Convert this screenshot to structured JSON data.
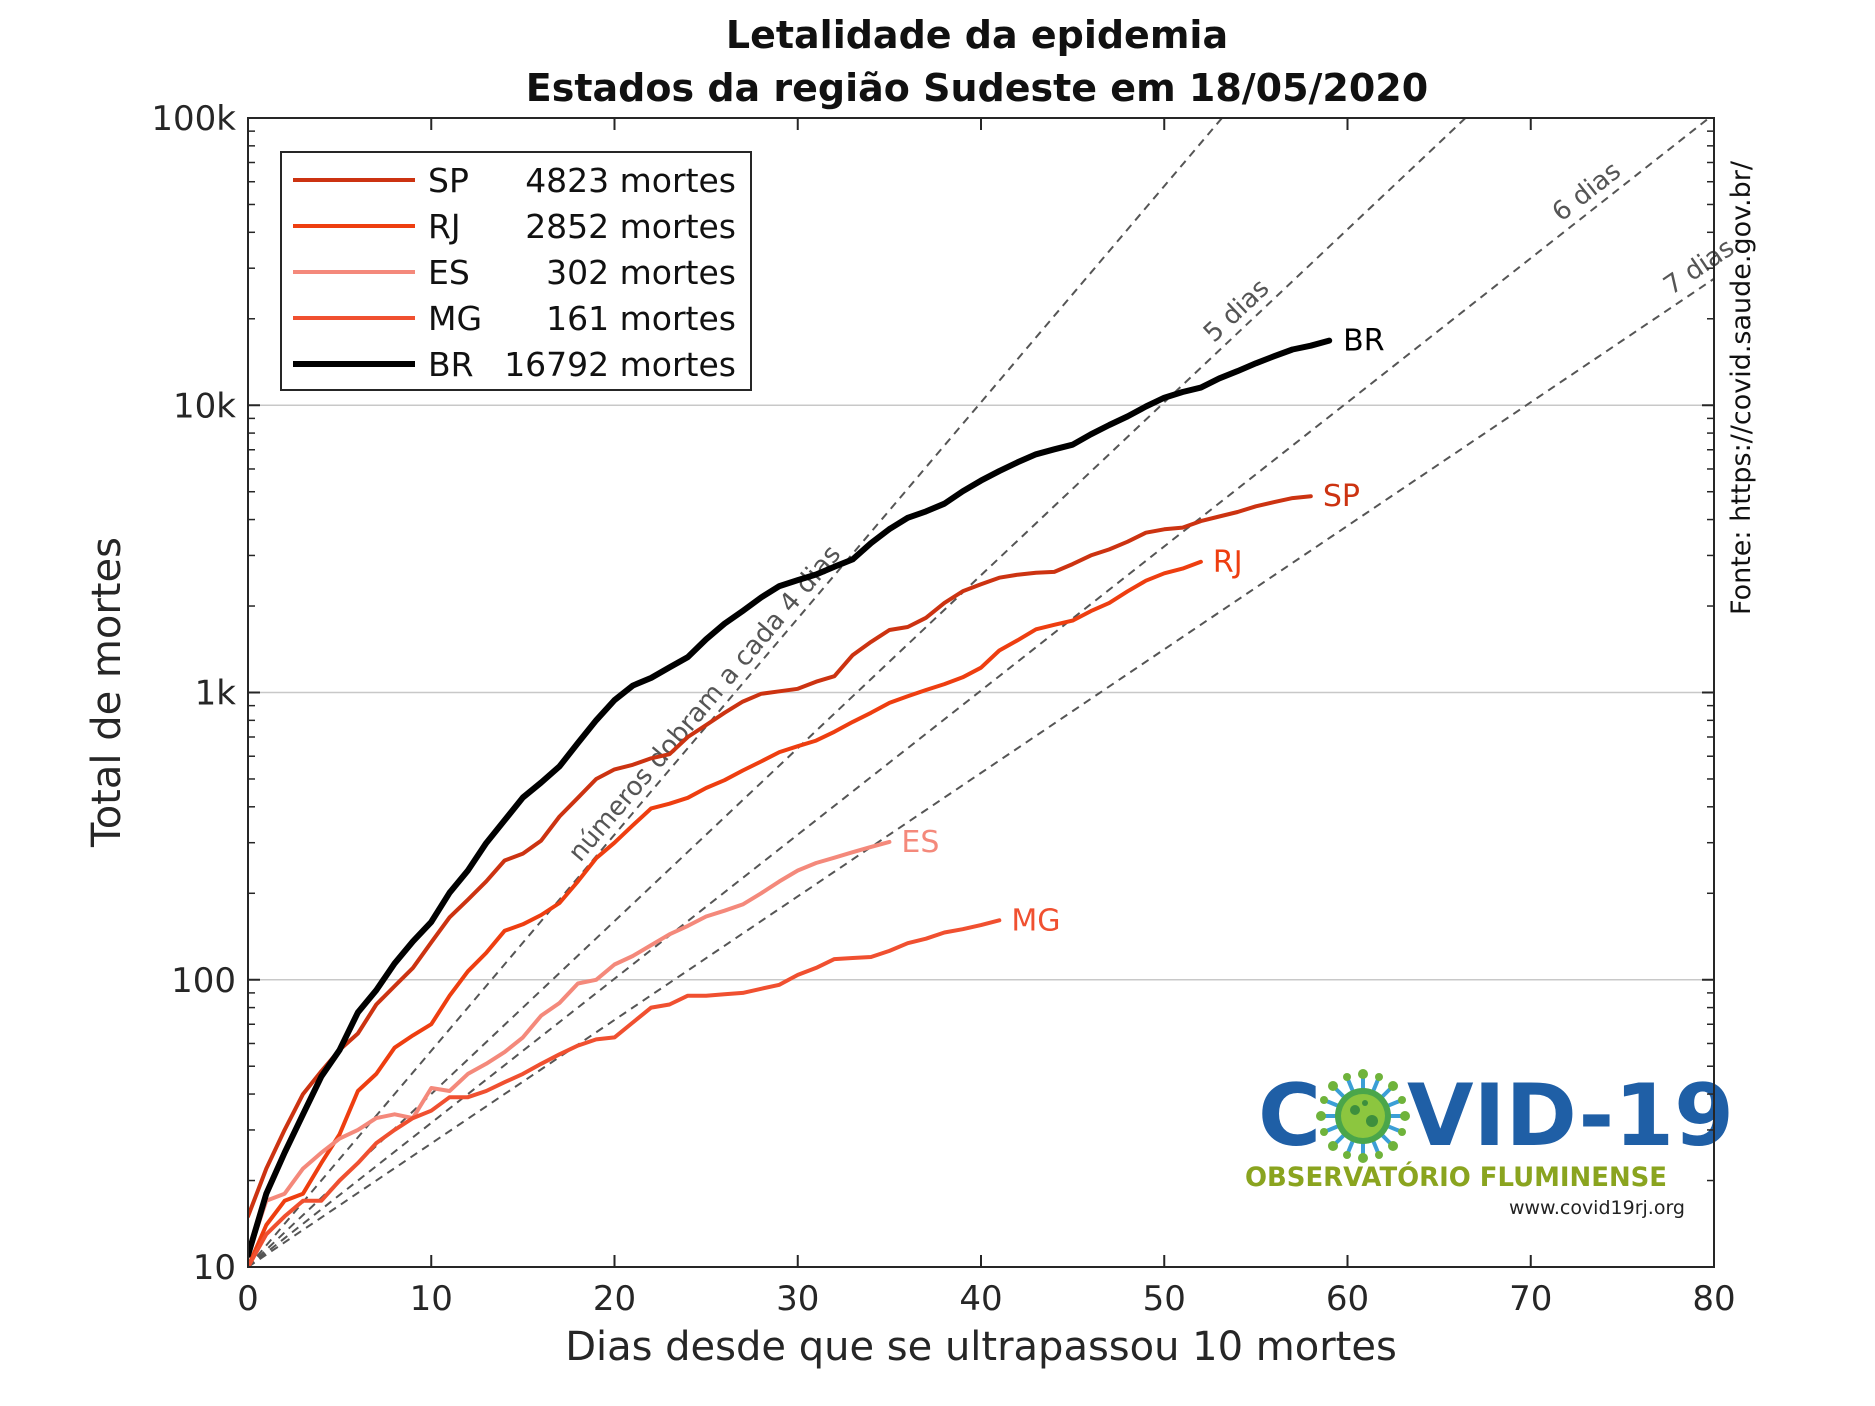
{
  "chart_data": {
    "type": "line",
    "title": "Letalidade da epidemia",
    "subtitle": "Estados da região Sudeste em 18/05/2020",
    "xlabel": "Dias desde que se ultrapassou 10 mortes",
    "ylabel": "Total de mortes",
    "xlim": [
      0,
      80
    ],
    "ylim": [
      10,
      100000
    ],
    "yscale": "log",
    "x_ticks": [
      "0",
      "10",
      "20",
      "30",
      "40",
      "50",
      "60",
      "70",
      "80"
    ],
    "y_ticks": [
      "10",
      "100",
      "1k",
      "10k",
      "100k"
    ],
    "grid": "horizontal at decades",
    "legend_position": "top-left",
    "source": "Fonte: https://covid.saude.gov.br/",
    "logo": {
      "name": "COVID-19",
      "subtitle": "OBSERVATÓRIO FLUMINENSE",
      "url": "www.covid19rj.org"
    },
    "reference_lines": [
      {
        "label": "números dobram a cada 4 dias",
        "doubling_days": 4
      },
      {
        "label": "5 dias",
        "doubling_days": 5
      },
      {
        "label": "6 dias",
        "doubling_days": 6
      },
      {
        "label": "7 dias",
        "doubling_days": 7
      }
    ],
    "series": [
      {
        "name": "SP",
        "legend": "4823 mortes",
        "color": "#cc3311",
        "width": 4,
        "x": [
          0,
          1,
          2,
          3,
          4,
          5,
          6,
          7,
          8,
          9,
          10,
          11,
          12,
          13,
          14,
          15,
          16,
          17,
          18,
          19,
          20,
          21,
          22,
          23,
          24,
          25,
          26,
          27,
          28,
          29,
          30,
          31,
          32,
          33,
          34,
          35,
          36,
          37,
          38,
          39,
          40,
          41,
          42,
          43,
          44,
          45,
          46,
          47,
          48,
          49,
          50,
          51,
          52,
          53,
          54,
          55,
          56,
          57,
          58
        ],
        "y": [
          15,
          22,
          30,
          40,
          48,
          57,
          65,
          82,
          95,
          110,
          135,
          165,
          190,
          220,
          260,
          275,
          305,
          370,
          430,
          500,
          540,
          560,
          590,
          610,
          700,
          770,
          850,
          930,
          990,
          1010,
          1030,
          1090,
          1140,
          1350,
          1500,
          1650,
          1690,
          1820,
          2050,
          2250,
          2380,
          2510,
          2570,
          2610,
          2630,
          2800,
          3000,
          3150,
          3350,
          3600,
          3700,
          3750,
          3950,
          4100,
          4250,
          4450,
          4600,
          4750,
          4823
        ]
      },
      {
        "name": "RJ",
        "legend": "2852 mortes",
        "color": "#ee3e10",
        "width": 4,
        "x": [
          0,
          1,
          2,
          3,
          4,
          5,
          6,
          7,
          8,
          9,
          10,
          11,
          12,
          13,
          14,
          15,
          16,
          17,
          18,
          19,
          20,
          21,
          22,
          23,
          24,
          25,
          26,
          27,
          28,
          29,
          30,
          31,
          32,
          33,
          34,
          35,
          36,
          37,
          38,
          39,
          40,
          41,
          42,
          43,
          44,
          45,
          46,
          47,
          48,
          49,
          50,
          51,
          52
        ],
        "y": [
          10,
          14,
          17,
          18,
          23,
          29,
          41,
          47,
          58,
          64,
          70,
          88,
          107,
          124,
          148,
          156,
          168,
          185,
          220,
          265,
          300,
          345,
          395,
          410,
          430,
          465,
          495,
          535,
          575,
          620,
          650,
          680,
          730,
          790,
          850,
          920,
          970,
          1020,
          1070,
          1130,
          1220,
          1400,
          1520,
          1660,
          1720,
          1780,
          1920,
          2050,
          2250,
          2450,
          2600,
          2700,
          2852
        ]
      },
      {
        "name": "ES",
        "legend": "302 mortes",
        "color": "#f4897b",
        "width": 4,
        "x": [
          0,
          1,
          2,
          3,
          4,
          5,
          6,
          7,
          8,
          9,
          10,
          11,
          12,
          13,
          14,
          15,
          16,
          17,
          18,
          19,
          20,
          21,
          22,
          23,
          24,
          25,
          26,
          27,
          28,
          29,
          30,
          31,
          32,
          33,
          34,
          35
        ],
        "y": [
          11,
          17,
          18,
          22,
          25,
          28,
          30,
          33,
          34,
          33,
          42,
          41,
          47,
          51,
          56,
          63,
          75,
          83,
          97,
          100,
          113,
          121,
          132,
          144,
          154,
          166,
          174,
          183,
          200,
          220,
          240,
          255,
          266,
          278,
          290,
          302
        ]
      },
      {
        "name": "MG",
        "legend": "161 mortes",
        "color": "#f05030",
        "width": 4,
        "x": [
          0,
          1,
          2,
          3,
          4,
          5,
          6,
          7,
          8,
          9,
          10,
          11,
          12,
          13,
          14,
          15,
          16,
          17,
          18,
          19,
          20,
          21,
          22,
          23,
          24,
          25,
          26,
          27,
          28,
          29,
          30,
          31,
          32,
          33,
          34,
          35,
          36,
          37,
          38,
          39,
          40,
          41
        ],
        "y": [
          10,
          13,
          15,
          17,
          17,
          20,
          23,
          27,
          30,
          33,
          35,
          39,
          39,
          41,
          44,
          47,
          51,
          55,
          59,
          62,
          63,
          71,
          80,
          82,
          88,
          88,
          89,
          90,
          93,
          96,
          104,
          110,
          118,
          119,
          120,
          126,
          134,
          139,
          146,
          150,
          155,
          161
        ]
      },
      {
        "name": "BR",
        "legend": "16792 mortes",
        "color": "#000000",
        "width": 6,
        "x": [
          0,
          1,
          2,
          3,
          4,
          5,
          6,
          7,
          8,
          9,
          10,
          11,
          12,
          13,
          14,
          15,
          16,
          17,
          18,
          19,
          20,
          21,
          22,
          23,
          24,
          25,
          26,
          27,
          28,
          29,
          30,
          31,
          32,
          33,
          34,
          35,
          36,
          37,
          38,
          39,
          40,
          41,
          42,
          43,
          44,
          45,
          46,
          47,
          48,
          49,
          50,
          51,
          52,
          53,
          54,
          55,
          56,
          57,
          58,
          59
        ],
        "y": [
          11,
          18,
          25,
          34,
          46,
          57,
          77,
          92,
          114,
          136,
          159,
          201,
          240,
          299,
          359,
          431,
          486,
          553,
          667,
          800,
          941,
          1057,
          1124,
          1223,
          1328,
          1532,
          1736,
          1924,
          2141,
          2347,
          2462,
          2575,
          2741,
          2906,
          3313,
          3704,
          4057,
          4271,
          4543,
          5017,
          5466,
          5901,
          6329,
          6750,
          7025,
          7288,
          7921,
          8536,
          9146,
          9897,
          10627,
          11123,
          11519,
          12400,
          13149,
          13993,
          14817,
          15633,
          16118,
          16792
        ]
      }
    ]
  }
}
